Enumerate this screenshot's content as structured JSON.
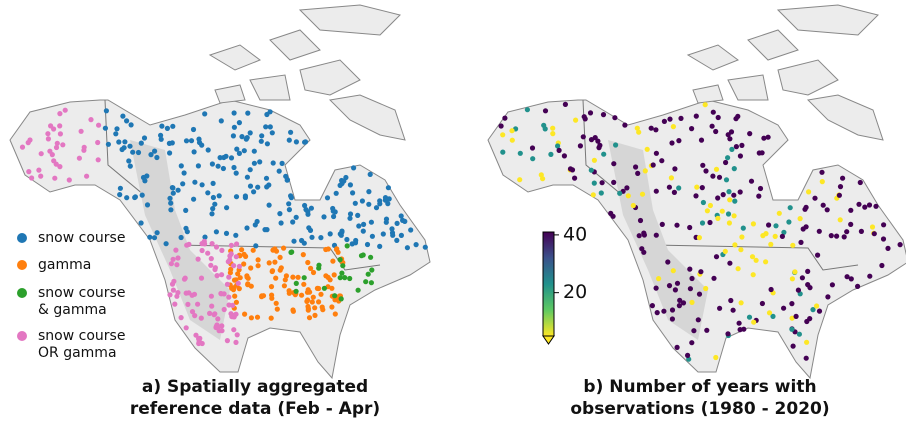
{
  "panel_a": {
    "caption": [
      "a) Spatially aggregated",
      "reference data (Feb - Apr)"
    ],
    "legend": [
      {
        "label": [
          "snow course"
        ],
        "color": "#1f77b4"
      },
      {
        "label": [
          "gamma"
        ],
        "color": "#ff7f0e"
      },
      {
        "label": [
          "snow course",
          "& gamma"
        ],
        "color": "#2ca02c"
      },
      {
        "label": [
          "snow course",
          "OR gamma"
        ],
        "color": "#e377c2"
      }
    ]
  },
  "panel_b": {
    "caption": [
      "b) Number of years with",
      "observations (1980 - 2020)"
    ],
    "colorbar": {
      "lim": [
        5,
        41
      ],
      "ticks": [
        20,
        40
      ]
    }
  }
}
